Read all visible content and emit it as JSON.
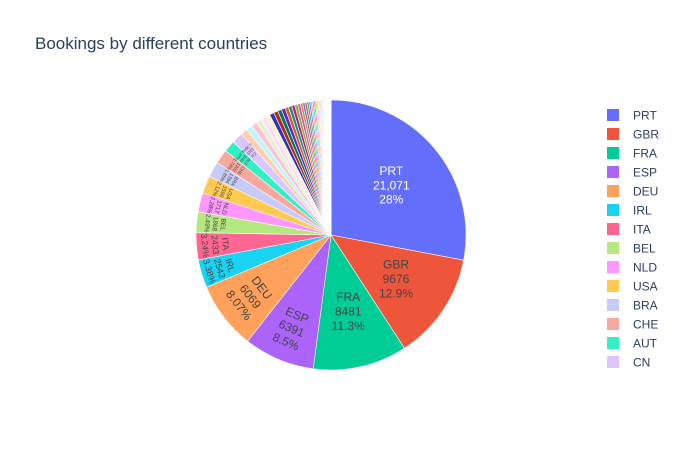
{
  "chart_data": {
    "type": "pie",
    "title": "Bookings by different countries",
    "legend_position": "right",
    "slices": [
      {
        "label": "PRT",
        "value": 21071,
        "value_text": "21,071",
        "percent_text": "28%",
        "color": "#636efa"
      },
      {
        "label": "GBR",
        "value": 9676,
        "value_text": "9676",
        "percent_text": "12.9%",
        "color": "#EF553B"
      },
      {
        "label": "FRA",
        "value": 8481,
        "value_text": "8481",
        "percent_text": "11.3%",
        "color": "#00cc96"
      },
      {
        "label": "ESP",
        "value": 6391,
        "value_text": "6391",
        "percent_text": "8.5%",
        "color": "#ab63fa"
      },
      {
        "label": "DEU",
        "value": 6069,
        "value_text": "6069",
        "percent_text": "8.07%",
        "color": "#FFA15A"
      },
      {
        "label": "IRL",
        "value": 2543,
        "value_text": "2543",
        "percent_text": "3.38%",
        "color": "#19d3f3"
      },
      {
        "label": "ITA",
        "value": 2433,
        "value_text": "2433",
        "percent_text": "3.24%",
        "color": "#FF6692"
      },
      {
        "label": "BEL",
        "value": 1868,
        "value_text": "1868",
        "percent_text": "2.49%",
        "color": "#B6E880"
      },
      {
        "label": "NLD",
        "value": 1717,
        "value_text": "1717",
        "percent_text": "2.28%",
        "color": "#FF97FF"
      },
      {
        "label": "USA",
        "value": 1596,
        "value_text": "1596",
        "percent_text": "2.12%",
        "color": "#FECB52"
      },
      {
        "label": "BRA",
        "value": 1394,
        "value_text": "1394",
        "percent_text": "1.85%",
        "color": "#c6cbfb"
      },
      {
        "label": "CHE",
        "value": 1302,
        "value_text": "1302",
        "percent_text": "1.73%",
        "color": "#f7a99d"
      },
      {
        "label": "AUT",
        "value": 1033,
        "value_text": "1033",
        "percent_text": "1.37%",
        "color": "#33f0c4"
      },
      {
        "label": "CN",
        "value": 1025,
        "value_text": "1025",
        "percent_text": "1.36%",
        "color": "#ddc6fd"
      },
      {
        "value": 600,
        "color": "#ffd0ad"
      },
      {
        "value": 560,
        "color": "#c2f5fb"
      },
      {
        "value": 520,
        "color": "#ffc2d5"
      },
      {
        "value": 480,
        "color": "#e2f4cf"
      },
      {
        "value": 450,
        "color": "#ffdcff"
      },
      {
        "value": 420,
        "color": "#fff0cb"
      },
      {
        "value": 400,
        "color": "#2c35b8"
      },
      {
        "value": 380,
        "color": "#b42a16"
      },
      {
        "value": 360,
        "color": "#00775a"
      },
      {
        "value": 340,
        "color": "#6a1fc0"
      },
      {
        "value": 320,
        "color": "#d06512"
      },
      {
        "value": 300,
        "color": "#0a91ac"
      },
      {
        "value": 280,
        "color": "#d01855"
      },
      {
        "value": 260,
        "color": "#78b83d"
      },
      {
        "value": 240,
        "color": "#d04dd0"
      },
      {
        "value": 220,
        "color": "#d39b0d"
      },
      {
        "value": 200,
        "color": "#636efa"
      },
      {
        "value": 185,
        "color": "#EF553B"
      },
      {
        "value": 170,
        "color": "#00cc96"
      },
      {
        "value": 160,
        "color": "#ab63fa"
      },
      {
        "value": 150,
        "color": "#FFA15A"
      },
      {
        "value": 140,
        "color": "#19d3f3"
      },
      {
        "value": 130,
        "color": "#FF6692"
      },
      {
        "value": 120,
        "color": "#B6E880"
      },
      {
        "value": 110,
        "color": "#FF97FF"
      },
      {
        "value": 100,
        "color": "#FECB52"
      },
      {
        "value": 95,
        "color": "#c6cbfb"
      },
      {
        "value": 90,
        "color": "#f7a99d"
      },
      {
        "value": 85,
        "color": "#33f0c4"
      },
      {
        "value": 80,
        "color": "#ddc6fd"
      },
      {
        "value": 75,
        "color": "#ffd0ad"
      },
      {
        "value": 70,
        "color": "#c2f5fb"
      },
      {
        "value": 65,
        "color": "#ffc2d5"
      },
      {
        "value": 60,
        "color": "#e2f4cf"
      },
      {
        "value": 55,
        "color": "#ffdcff"
      },
      {
        "value": 50,
        "color": "#fff0cb"
      },
      {
        "value": 45,
        "color": "#636efa"
      },
      {
        "value": 40,
        "color": "#EF553B"
      },
      {
        "value": 35,
        "color": "#00cc96"
      },
      {
        "value": 30,
        "color": "#ab63fa"
      },
      {
        "value": 28,
        "color": "#FFA15A"
      },
      {
        "value": 25,
        "color": "#19d3f3"
      },
      {
        "value": 22,
        "color": "#FF6692"
      },
      {
        "value": 20,
        "color": "#B6E880"
      },
      {
        "value": 18,
        "color": "#FF97FF"
      },
      {
        "value": 16,
        "color": "#FECB52"
      },
      {
        "value": 14,
        "color": "#c6cbfb"
      },
      {
        "value": 12,
        "color": "#f7a99d"
      },
      {
        "value": 10,
        "color": "#33f0c4"
      },
      {
        "value": 9,
        "color": "#ddc6fd"
      },
      {
        "value": 8,
        "color": "#ffd0ad"
      },
      {
        "value": 7,
        "color": "#c2f5fb"
      },
      {
        "value": 6,
        "color": "#ffc2d5"
      },
      {
        "value": 5,
        "color": "#e2f4cf"
      },
      {
        "value": 4,
        "color": "#ffdcff"
      },
      {
        "value": 3,
        "color": "#fff0cb"
      }
    ],
    "legend_items": [
      "PRT",
      "GBR",
      "FRA",
      "ESP",
      "DEU",
      "IRL",
      "ITA",
      "BEL",
      "NLD",
      "USA",
      "BRA",
      "CHE",
      "AUT",
      "CN"
    ]
  }
}
